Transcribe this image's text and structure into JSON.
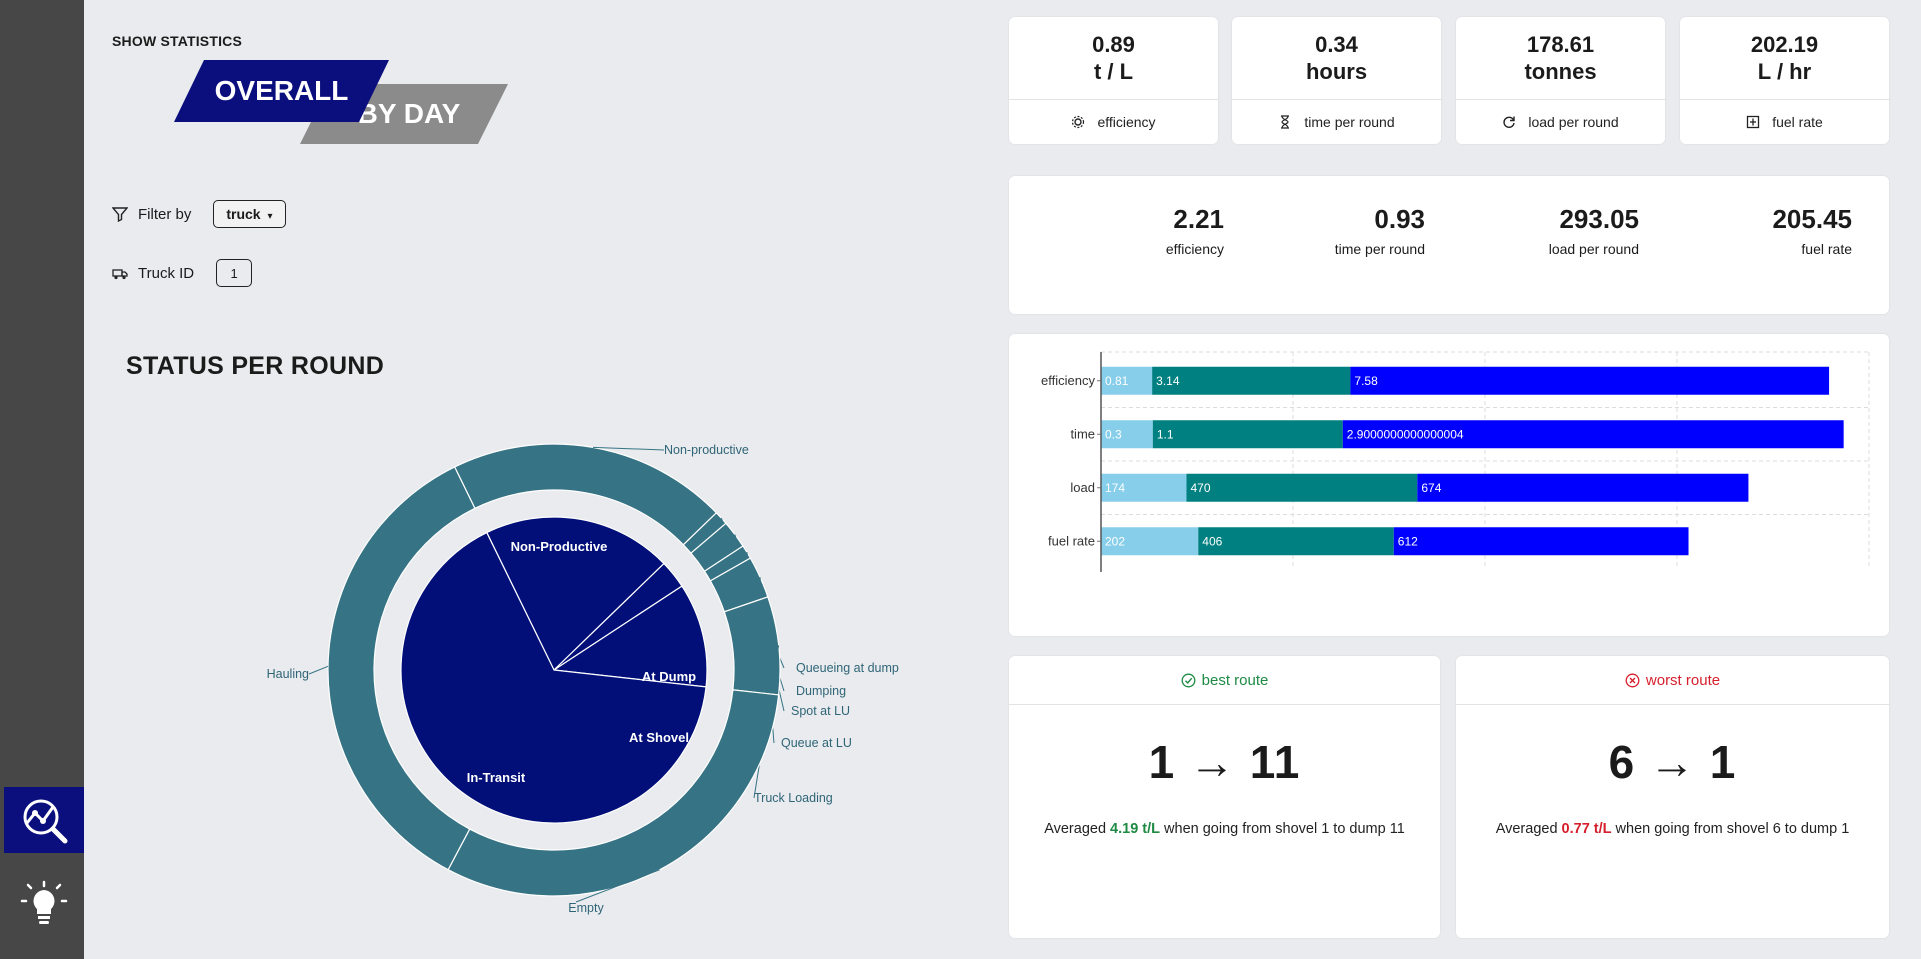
{
  "header": {
    "show_statistics": "SHOW STATISTICS"
  },
  "toggle": {
    "overall": "OVERALL",
    "by_day": "BY DAY"
  },
  "filter": {
    "label": "Filter by",
    "value": "truck",
    "arrow": "▾"
  },
  "truck": {
    "label": "Truck ID",
    "value": "1"
  },
  "status": {
    "title": "STATUS PER ROUND"
  },
  "kpis": [
    {
      "value": "0.89",
      "unit": "t / L",
      "label": "efficiency",
      "icon": "gear-icon"
    },
    {
      "value": "0.34",
      "unit": "hours",
      "label": "time per round",
      "icon": "hourglass-icon"
    },
    {
      "value": "178.61",
      "unit": "tonnes",
      "label": "load per round",
      "icon": "refresh-icon"
    },
    {
      "value": "202.19",
      "unit": "L / hr",
      "label": "fuel rate",
      "icon": "fuel-icon"
    }
  ],
  "stats": [
    {
      "value": "2.21",
      "label": "efficiency"
    },
    {
      "value": "0.93",
      "label": "time per round"
    },
    {
      "value": "293.05",
      "label": "load per round"
    },
    {
      "value": "205.45",
      "label": "fuel rate"
    }
  ],
  "routes": {
    "best": {
      "title": "best route",
      "big": "1 → 11",
      "pre": "Averaged ",
      "value": "4.19 t/L",
      "post": " when going from shovel 1 to dump 11"
    },
    "worst": {
      "title": "worst route",
      "big": "6 → 1",
      "pre": "Averaged ",
      "value": "0.77 t/L",
      "post": " when going from shovel 6 to dump 1"
    }
  },
  "chart_data": [
    {
      "type": "bar",
      "orientation": "horizontal",
      "stacked": true,
      "categories": [
        "efficiency",
        "time",
        "load",
        "fuel rate"
      ],
      "series": [
        {
          "name": "series 1",
          "color": "#87ceeb",
          "values": [
            0.81,
            0.3,
            174,
            202
          ],
          "labels": [
            "0.81",
            "0.3",
            "174",
            "202"
          ]
        },
        {
          "name": "series 2",
          "color": "#008080",
          "values": [
            3.14,
            1.1,
            470,
            406
          ],
          "labels": [
            "3.14",
            "1.1",
            "470",
            "406"
          ]
        },
        {
          "name": "series 3",
          "color": "#0000ff",
          "values": [
            7.58,
            2.9000000000000004,
            674,
            612
          ],
          "labels": [
            "7.58",
            "2.9000000000000004",
            "674",
            "612"
          ]
        }
      ],
      "grid": true
    },
    {
      "type": "pie",
      "title": "STATUS PER ROUND",
      "inner": [
        {
          "label": "Non-Productive",
          "value": 0.2
        },
        {
          "label": "At Dump",
          "value": 0.03
        },
        {
          "label": "At Shovel",
          "value": 0.11
        },
        {
          "label": "In-Transit",
          "value": 0.66
        }
      ],
      "outer": [
        {
          "label": "Non-productive",
          "value": 0.2
        },
        {
          "label": "Queueing at dump",
          "value": 0.01
        },
        {
          "label": "Dumping",
          "value": 0.02
        },
        {
          "label": "Spot at LU",
          "value": 0.01
        },
        {
          "label": "Queue at LU",
          "value": 0.03
        },
        {
          "label": "Truck Loading",
          "value": 0.07
        },
        {
          "label": "Empty",
          "value": 0.31
        },
        {
          "label": "Hauling",
          "value": 0.35
        }
      ],
      "colors": {
        "inner": "#020f78",
        "outer": "#367384"
      }
    }
  ]
}
